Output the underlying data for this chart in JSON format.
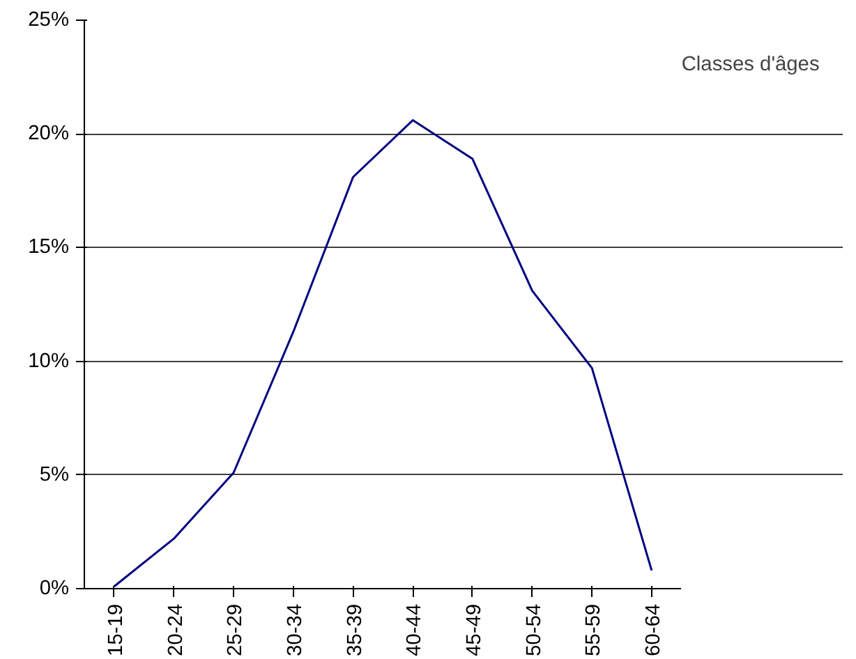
{
  "chart_data": {
    "type": "line",
    "xlabel": "Classes d'âges",
    "categories": [
      "15-19",
      "20-24",
      "25-29",
      "30-34",
      "35-39",
      "40-44",
      "45-49",
      "50-54",
      "55-59",
      "60-64"
    ],
    "series": [
      {
        "color": "#000080",
        "values": [
          0.1,
          2.2,
          5.1,
          11.3,
          18.1,
          20.6,
          18.9,
          13.1,
          9.7,
          0.8
        ]
      }
    ],
    "ylim": [
      0,
      25
    ],
    "yticks": [
      {
        "value": 0,
        "label": "0%"
      },
      {
        "value": 5,
        "label": "5%"
      },
      {
        "value": 10,
        "label": "10%"
      },
      {
        "value": 15,
        "label": "15%"
      },
      {
        "value": 20,
        "label": "20%"
      },
      {
        "value": 25,
        "label": "25%"
      }
    ],
    "grid": "y",
    "marker": "none",
    "line_style": "solid"
  }
}
